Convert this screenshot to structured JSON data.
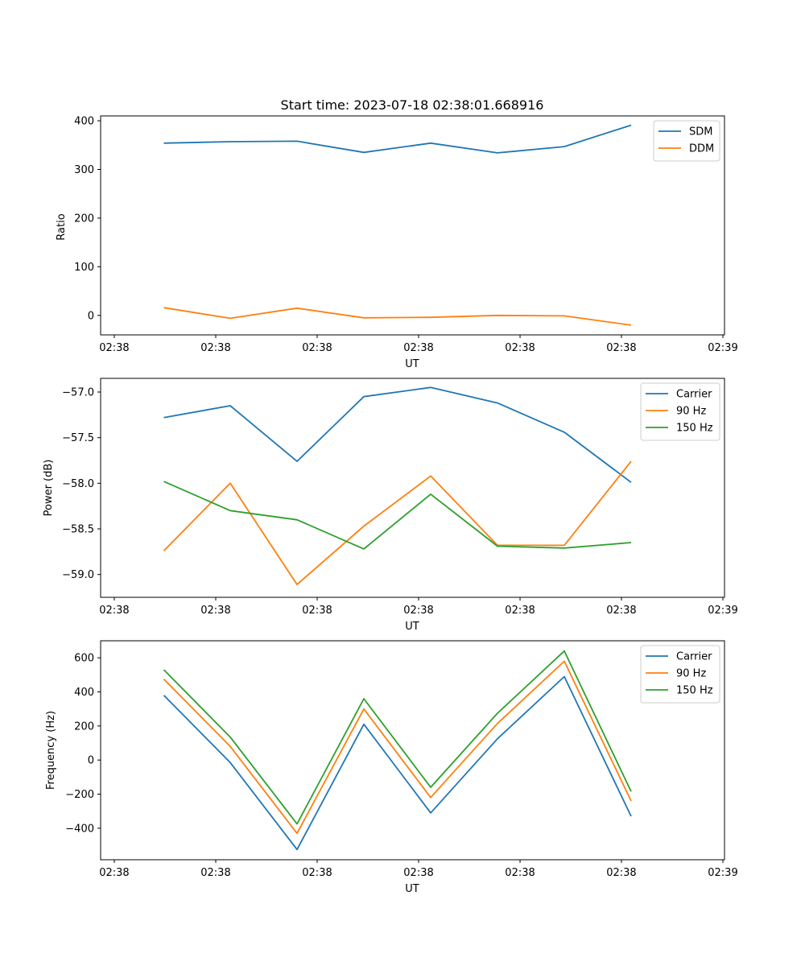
{
  "chart_data": [
    {
      "type": "line",
      "title": "Start time: 2023-07-18 02:38:01.668916",
      "xlabel": "UT",
      "ylabel": "Ratio",
      "x_ticks": [
        "02:38",
        "02:38",
        "02:38",
        "02:38",
        "02:38",
        "02:38",
        "02:38"
      ],
      "x_tick_last": "02:39",
      "ylim": [
        -40,
        410
      ],
      "y_ticks": [
        "0",
        "100",
        "200",
        "300",
        "400"
      ],
      "y_tick_values": [
        0,
        100,
        200,
        300,
        400
      ],
      "legend_position": "top-right",
      "series": [
        {
          "name": "SDM",
          "color": "#1f77b4",
          "values": [
            354,
            357,
            358,
            335,
            354,
            334,
            347,
            391
          ]
        },
        {
          "name": "DDM",
          "color": "#ff7f0e",
          "values": [
            16,
            -6,
            15,
            -5,
            -4,
            0,
            -1,
            -20
          ]
        }
      ]
    },
    {
      "type": "line",
      "title": "",
      "xlabel": "UT",
      "ylabel": "Power (dB)",
      "x_ticks": [
        "02:38",
        "02:38",
        "02:38",
        "02:38",
        "02:38",
        "02:38",
        "02:38"
      ],
      "x_tick_last": "02:39",
      "ylim": [
        -59.25,
        -56.85
      ],
      "y_ticks": [
        "−59.0",
        "−58.5",
        "−58.0",
        "−57.5",
        "−57.0"
      ],
      "y_tick_values": [
        -59.0,
        -58.5,
        -58.0,
        -57.5,
        -57.0
      ],
      "legend_position": "top-right",
      "series": [
        {
          "name": "Carrier",
          "color": "#1f77b4",
          "values": [
            -57.28,
            -57.15,
            -57.76,
            -57.05,
            -56.95,
            -57.12,
            -57.44,
            -57.99
          ]
        },
        {
          "name": "90 Hz",
          "color": "#ff7f0e",
          "values": [
            -58.74,
            -58.0,
            -59.11,
            -58.47,
            -57.92,
            -58.68,
            -58.68,
            -57.76
          ]
        },
        {
          "name": "150 Hz",
          "color": "#2ca02c",
          "values": [
            -57.98,
            -58.3,
            -58.4,
            -58.72,
            -58.12,
            -58.69,
            -58.71,
            -58.65
          ]
        }
      ]
    },
    {
      "type": "line",
      "title": "",
      "xlabel": "UT",
      "ylabel": "Frequency (Hz)",
      "x_ticks": [
        "02:38",
        "02:38",
        "02:38",
        "02:38",
        "02:38",
        "02:38",
        "02:38"
      ],
      "x_tick_last": "02:39",
      "ylim": [
        -585,
        700
      ],
      "y_ticks": [
        "−400",
        "−200",
        "0",
        "200",
        "400",
        "600"
      ],
      "y_tick_values": [
        -400,
        -200,
        0,
        200,
        400,
        600
      ],
      "legend_position": "top-right",
      "series": [
        {
          "name": "Carrier",
          "color": "#1f77b4",
          "values": [
            380,
            -15,
            -525,
            210,
            -310,
            125,
            490,
            -330
          ]
        },
        {
          "name": "90 Hz",
          "color": "#ff7f0e",
          "values": [
            475,
            80,
            -430,
            300,
            -220,
            215,
            580,
            -240
          ]
        },
        {
          "name": "150 Hz",
          "color": "#2ca02c",
          "values": [
            530,
            135,
            -375,
            360,
            -160,
            275,
            640,
            -185
          ]
        }
      ]
    }
  ]
}
